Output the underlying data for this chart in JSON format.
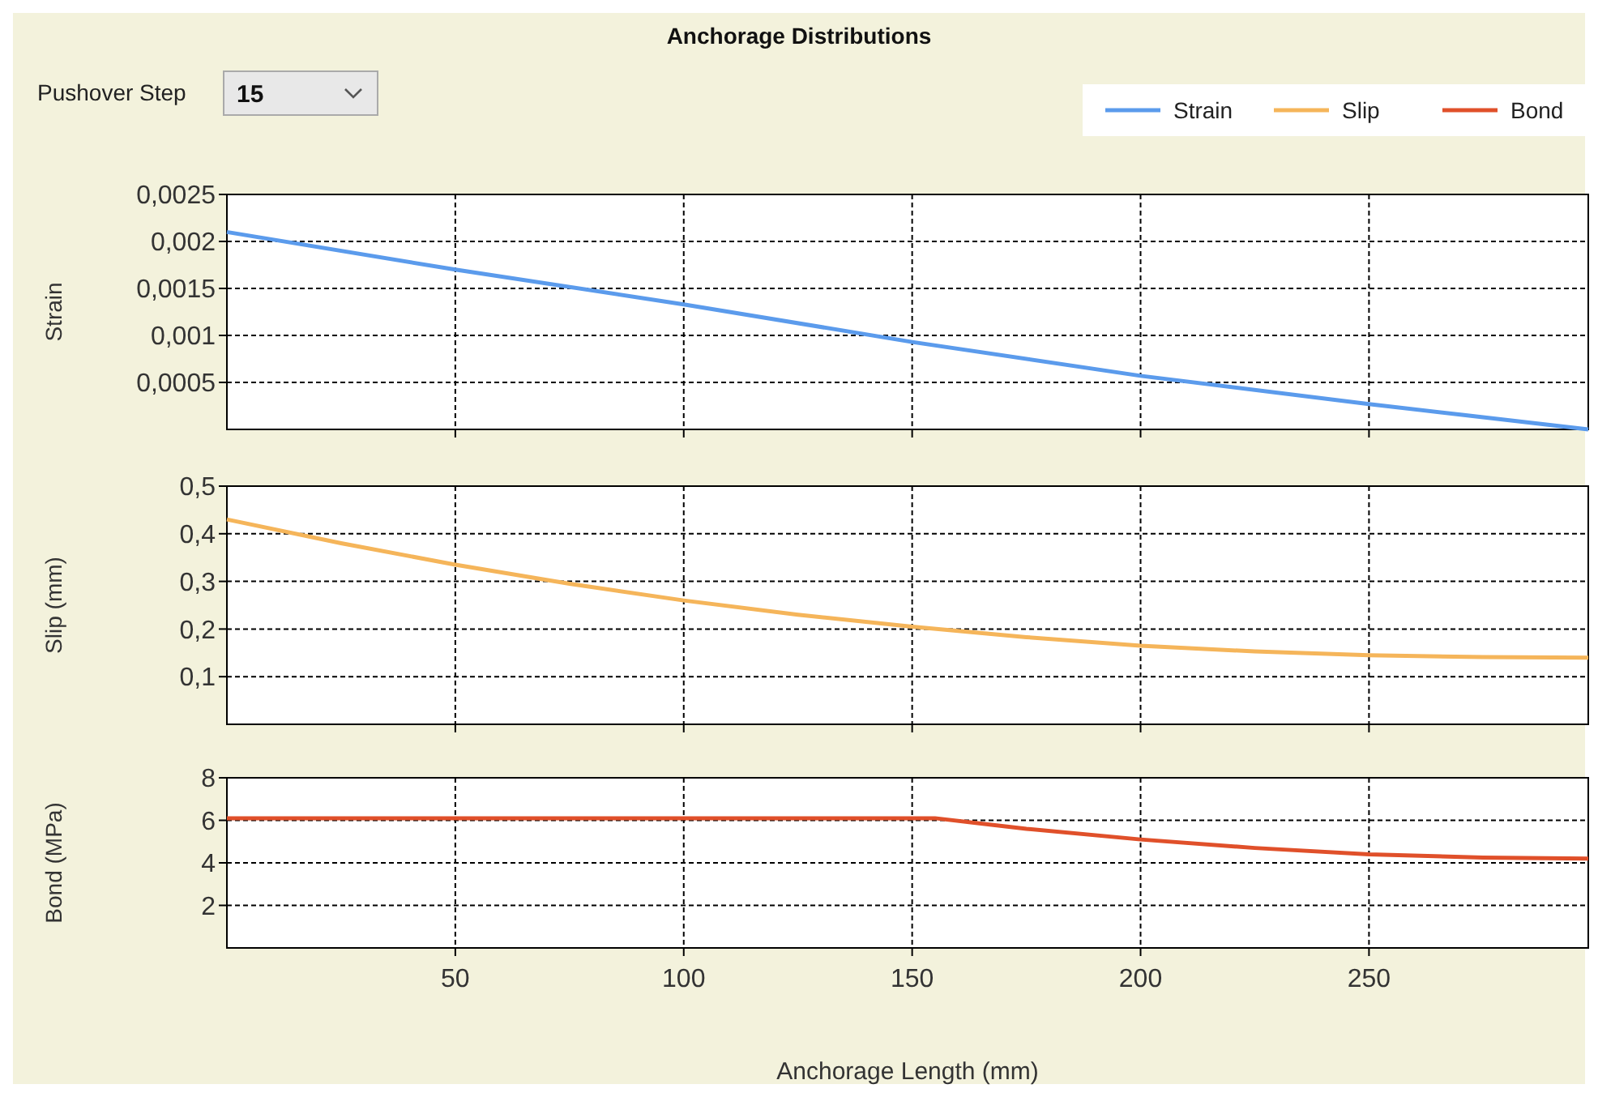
{
  "chart_data": [
    {
      "type": "line",
      "title": "Anchorage Distributions",
      "ylabel": "Strain",
      "annotations": [
        "Pushover Step",
        "15"
      ],
      "legend": "top right",
      "grid": true,
      "tick_labels": "y",
      "xlim": [
        0,
        298
      ],
      "xticks": [
        50,
        100,
        150,
        200,
        250
      ],
      "ylim": [
        0,
        0.0025
      ],
      "yticks": [
        {
          "value": 0.0005,
          "label": "0,0005"
        },
        {
          "value": 0.001,
          "label": "0,001"
        },
        {
          "value": 0.0015,
          "label": "0,0015"
        },
        {
          "value": 0.002,
          "label": "0,002"
        },
        {
          "value": 0.0025,
          "label": "0,0025"
        }
      ],
      "series": [
        {
          "name": "Strain",
          "color": "#5b9bec",
          "x": [
            0,
            50,
            100,
            150,
            200,
            250,
            298
          ],
          "values": [
            0.0021,
            0.0017,
            0.00133,
            0.00093,
            0.00057,
            0.00027,
            0
          ]
        }
      ]
    },
    {
      "type": "line",
      "ylabel": "Slip (mm)",
      "legend": "top right",
      "grid": true,
      "tick_labels": "y",
      "xlim": [
        0,
        298
      ],
      "xticks": [
        50,
        100,
        150,
        200,
        250
      ],
      "ylim": [
        0,
        0.5
      ],
      "yticks": [
        {
          "value": 0.1,
          "label": "0,1"
        },
        {
          "value": 0.2,
          "label": "0,2"
        },
        {
          "value": 0.3,
          "label": "0,3"
        },
        {
          "value": 0.4,
          "label": "0,4"
        },
        {
          "value": 0.5,
          "label": "0,5"
        }
      ],
      "series": [
        {
          "name": "Slip",
          "color": "#f5b55a",
          "x": [
            0,
            25,
            50,
            75,
            100,
            125,
            150,
            175,
            200,
            225,
            250,
            275,
            298
          ],
          "values": [
            0.43,
            0.38,
            0.335,
            0.295,
            0.26,
            0.23,
            0.205,
            0.183,
            0.165,
            0.153,
            0.145,
            0.141,
            0.14
          ]
        }
      ]
    },
    {
      "type": "line",
      "ylabel": "Bond (MPa)",
      "xlabel": "Anchorage Length (mm)",
      "legend": "top right",
      "grid": true,
      "xlim": [
        0,
        298
      ],
      "xticks": [
        50,
        100,
        150,
        200,
        250
      ],
      "ylim": [
        0,
        8
      ],
      "yticks": [
        2,
        4,
        6,
        8
      ],
      "series": [
        {
          "name": "Bond",
          "color": "#e0502a",
          "x": [
            0,
            155,
            175,
            200,
            225,
            250,
            275,
            298
          ],
          "values": [
            6.1,
            6.1,
            5.6,
            5.1,
            4.7,
            4.4,
            4.25,
            4.2
          ]
        }
      ]
    }
  ]
}
